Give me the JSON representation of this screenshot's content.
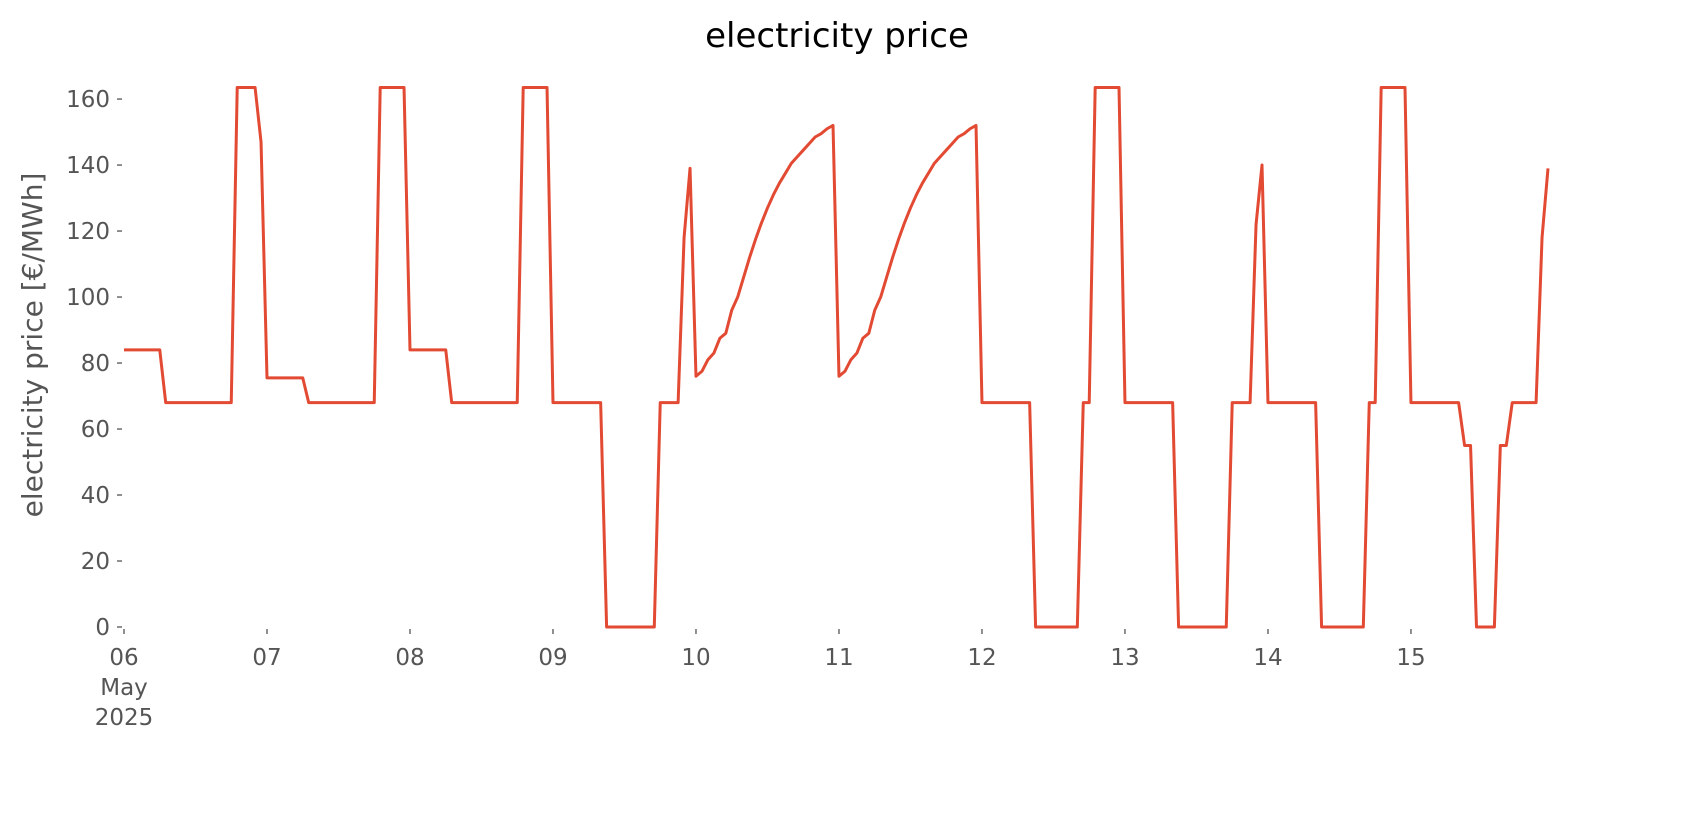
{
  "chart_data": {
    "type": "line",
    "title": "electricity price",
    "ylabel": "electricity price [€/MWh]",
    "color": "#E24A33",
    "x": [
      0,
      1,
      2,
      3,
      4,
      5,
      6,
      7,
      8,
      9,
      10,
      11,
      12,
      13,
      14,
      15,
      16,
      17,
      18,
      19,
      20,
      21,
      22,
      23,
      24,
      25,
      26,
      27,
      28,
      29,
      30,
      31,
      32,
      33,
      34,
      35,
      36,
      37,
      38,
      39,
      40,
      41,
      42,
      43,
      44,
      45,
      46,
      47,
      48,
      49,
      50,
      51,
      52,
      53,
      54,
      55,
      56,
      57,
      58,
      59,
      60,
      61,
      62,
      63,
      64,
      65,
      66,
      67,
      68,
      69,
      70,
      71,
      72,
      73,
      74,
      75,
      76,
      77,
      78,
      79,
      80,
      81,
      82,
      83,
      84,
      85,
      86,
      87,
      88,
      89,
      90,
      91,
      92,
      93,
      94,
      95,
      96,
      97,
      98,
      99,
      100,
      101,
      102,
      103,
      104,
      105,
      106,
      107,
      108,
      109,
      110,
      111,
      112,
      113,
      114,
      115,
      116,
      117,
      118,
      119,
      120,
      121,
      122,
      123,
      124,
      125,
      126,
      127,
      128,
      129,
      130,
      131,
      132,
      133,
      134,
      135,
      136,
      137,
      138,
      139,
      140,
      141,
      142,
      143,
      144,
      145,
      146,
      147,
      148,
      149,
      150,
      151,
      152,
      153,
      154,
      155,
      156,
      157,
      158,
      159,
      160,
      161,
      162,
      163,
      164,
      165,
      166,
      167,
      168,
      169,
      170,
      171,
      172,
      173,
      174,
      175,
      176,
      177,
      178,
      179,
      180,
      181,
      182,
      183,
      184,
      185,
      186,
      187,
      188,
      189,
      190,
      191,
      192,
      193,
      194,
      195,
      196,
      197,
      198,
      199,
      200,
      201,
      202,
      203,
      204,
      205,
      206,
      207,
      208,
      209,
      210,
      211,
      212,
      213,
      214,
      215,
      216,
      217,
      218,
      219,
      220,
      221,
      222,
      223,
      224,
      225,
      226,
      227,
      228,
      229,
      230,
      231,
      232,
      233,
      234,
      235,
      236,
      237,
      238,
      239
    ],
    "values": [
      84,
      84,
      84,
      84,
      84,
      84,
      84,
      68,
      68,
      68,
      68,
      68,
      68,
      68,
      68,
      68,
      68,
      68,
      68,
      163.5,
      163.5,
      163.5,
      163.5,
      147,
      75.5,
      75.5,
      75.5,
      75.5,
      75.5,
      75.5,
      75.5,
      68,
      68,
      68,
      68,
      68,
      68,
      68,
      68,
      68,
      68,
      68,
      68,
      163.5,
      163.5,
      163.5,
      163.5,
      163.5,
      84,
      84,
      84,
      84,
      84,
      84,
      84,
      68,
      68,
      68,
      68,
      68,
      68,
      68,
      68,
      68,
      68,
      68,
      68,
      163.5,
      163.5,
      163.5,
      163.5,
      163.5,
      68,
      68,
      68,
      68,
      68,
      68,
      68,
      68,
      68,
      0,
      0,
      0,
      0,
      0,
      0,
      0,
      0,
      0,
      68,
      68,
      68,
      68,
      118,
      139,
      76,
      77.5,
      81,
      83,
      87.5,
      89,
      96,
      100,
      106,
      112,
      117.5,
      122.5,
      127,
      131,
      134.5,
      137.5,
      140.5,
      142.5,
      144.5,
      146.5,
      148.5,
      149.5,
      151,
      152,
      76,
      77.5,
      81,
      83,
      87.5,
      89,
      96,
      100,
      106,
      112,
      117.5,
      122.5,
      127,
      131,
      134.5,
      137.5,
      140.5,
      142.5,
      144.5,
      146.5,
      148.5,
      149.5,
      151,
      152,
      68,
      68,
      68,
      68,
      68,
      68,
      68,
      68,
      68,
      0,
      0,
      0,
      0,
      0,
      0,
      0,
      0,
      68,
      68,
      163.5,
      163.5,
      163.5,
      163.5,
      163.5,
      68,
      68,
      68,
      68,
      68,
      68,
      68,
      68,
      68,
      0,
      0,
      0,
      0,
      0,
      0,
      0,
      0,
      0,
      68,
      68,
      68,
      68,
      122,
      140,
      68,
      68,
      68,
      68,
      68,
      68,
      68,
      68,
      68,
      0,
      0,
      0,
      0,
      0,
      0,
      0,
      0,
      68,
      68,
      163.5,
      163.5,
      163.5,
      163.5,
      163.5,
      68,
      68,
      68,
      68,
      68,
      68,
      68,
      68,
      68,
      55,
      55,
      0,
      0,
      0,
      0,
      55,
      55,
      68,
      68,
      68,
      68,
      68,
      118,
      139
    ],
    "xlim": [
      0,
      239
    ],
    "xticks": [
      {
        "value": 0,
        "label": "06\nMay\n2025"
      },
      {
        "value": 24,
        "label": "07"
      },
      {
        "value": 48,
        "label": "08"
      },
      {
        "value": 72,
        "label": "09"
      },
      {
        "value": 96,
        "label": "10"
      },
      {
        "value": 120,
        "label": "11"
      },
      {
        "value": 144,
        "label": "12"
      },
      {
        "value": 168,
        "label": "13"
      },
      {
        "value": 192,
        "label": "14"
      },
      {
        "value": 216,
        "label": "15"
      }
    ],
    "ylim": [
      0,
      163.5
    ],
    "yticks": [
      0,
      20,
      40,
      60,
      80,
      100,
      120,
      140,
      160
    ],
    "grid": false
  }
}
